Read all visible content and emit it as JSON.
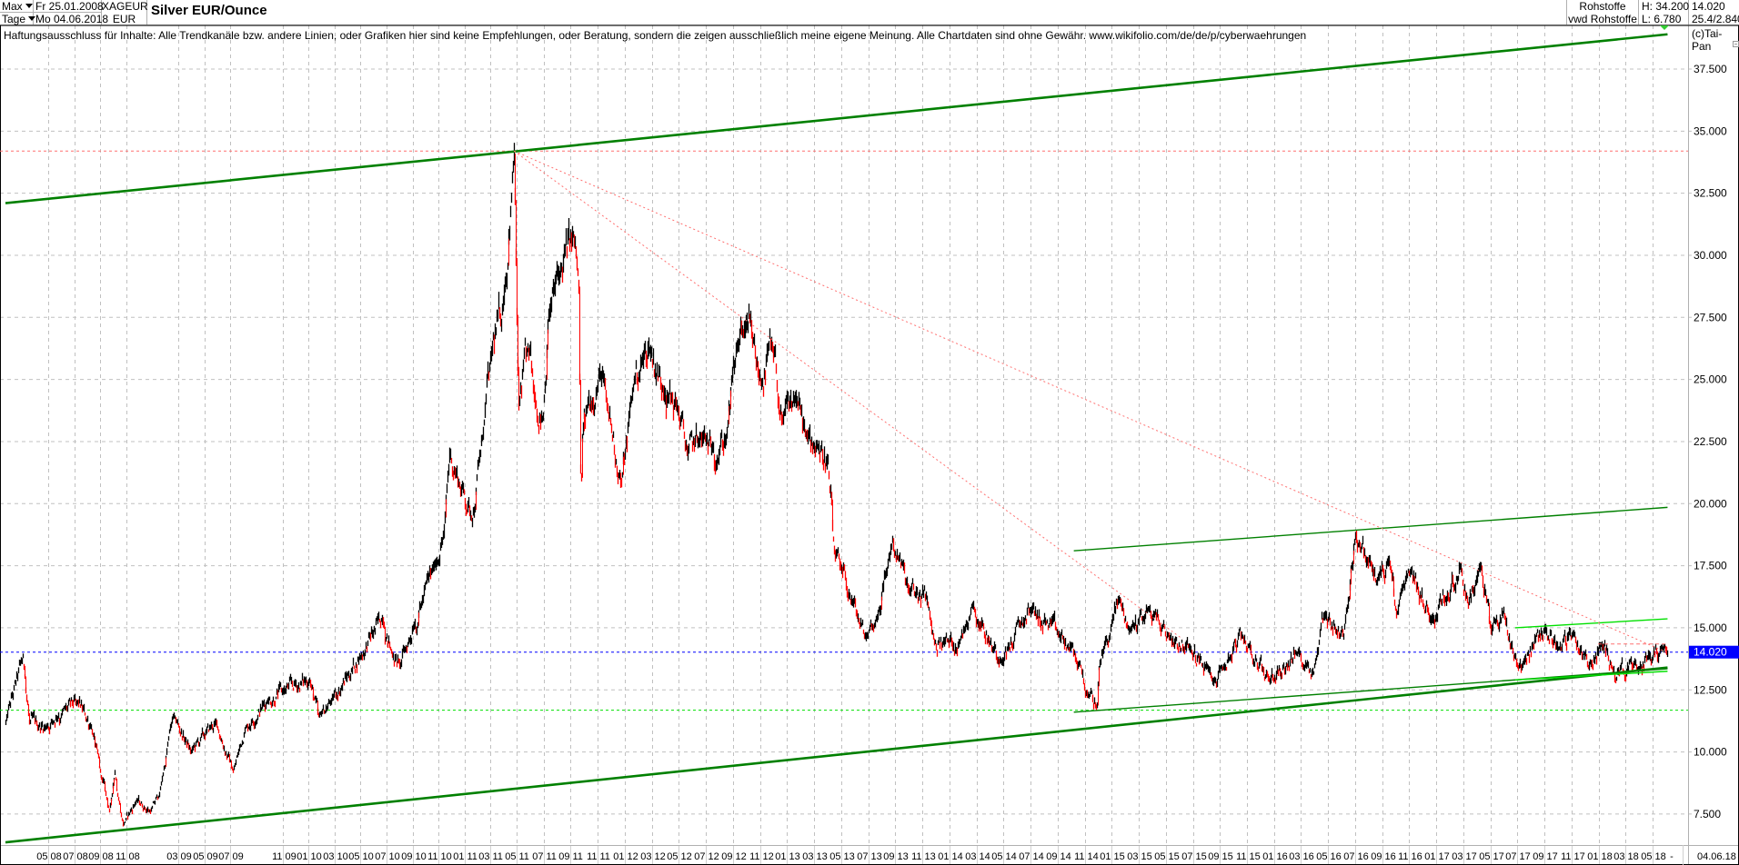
{
  "header": {
    "period_select": "Max",
    "interval_select": "Tage",
    "start_date": "Fr 25.01.2008",
    "end_date": "Mo 04.06.2018",
    "symbol": "XAGEUR",
    "currency": "EUR",
    "title": "Silver EUR/Ounce",
    "exchange": "Rohstoffe",
    "source": "vwd Rohstoffe",
    "high": "H: 34.200",
    "low": "L: 6.780",
    "last": "14.020",
    "info": "25.4/2.840"
  },
  "disclaimer": "Haftungsausschluss für Inhalte: Alle Trendkanäle bzw. andere Linien, oder Grafiken hier sind keine Empfehlungen, oder Beratung, sondern die zeigen ausschließlich meine eigene Meinung. Alle Chartdaten sind ohne Gewähr.  www.wikifolio.com/de/de/p/cyberwaehrungen",
  "copyright": "(c)Tai-Pan",
  "colors": {
    "bar_up": "#000000",
    "bar_down": "#ff0000",
    "trend_main": "#008000",
    "trend_light": "#00e000",
    "resistance_dotted": "#ff7070",
    "last_price": "#0000ff",
    "grid": "#c0c0c0"
  },
  "chart_data": {
    "type": "line",
    "style": "daily price bars",
    "xlim": [
      "2008-01-25",
      "2018-06-04"
    ],
    "ylim": [
      6.25,
      39.25
    ],
    "grid": true,
    "y_ticks": [
      "37.500",
      "35.000",
      "32.500",
      "30.000",
      "27.500",
      "25.000",
      "22.500",
      "20.000",
      "17.500",
      "15.000",
      "12.500",
      "10.000",
      "7.500"
    ],
    "y_tick_values": [
      37.5,
      35,
      32.5,
      30,
      27.5,
      25,
      22.5,
      20,
      17.5,
      15,
      12.5,
      10,
      7.5
    ],
    "x_ticks": [
      {
        "m": "05",
        "y": "08",
        "date": "2008-05-01"
      },
      {
        "m": "07",
        "y": "08",
        "date": "2008-07-01"
      },
      {
        "m": "09",
        "y": "08",
        "date": "2008-09-01"
      },
      {
        "m": "11",
        "y": "08",
        "date": "2008-11-01"
      },
      {
        "m": "03",
        "y": "09",
        "date": "2009-03-01"
      },
      {
        "m": "05",
        "y": "09",
        "date": "2009-05-01"
      },
      {
        "m": "07",
        "y": "09",
        "date": "2009-07-01"
      },
      {
        "m": "11",
        "y": "09",
        "date": "2009-11-01"
      },
      {
        "m": "01",
        "y": "10",
        "date": "2010-01-01"
      },
      {
        "m": "03",
        "y": "10",
        "date": "2010-03-01"
      },
      {
        "m": "05",
        "y": "10",
        "date": "2010-05-01"
      },
      {
        "m": "07",
        "y": "10",
        "date": "2010-07-01"
      },
      {
        "m": "09",
        "y": "10",
        "date": "2010-09-01"
      },
      {
        "m": "11",
        "y": "10",
        "date": "2010-11-01"
      },
      {
        "m": "01",
        "y": "11",
        "date": "2011-01-01"
      },
      {
        "m": "03",
        "y": "11",
        "date": "2011-03-01"
      },
      {
        "m": "05",
        "y": "11",
        "date": "2011-05-01"
      },
      {
        "m": "07",
        "y": "11",
        "date": "2011-07-01"
      },
      {
        "m": "09",
        "y": "11",
        "date": "2011-09-01"
      },
      {
        "m": "11",
        "y": "11",
        "date": "2011-11-01"
      },
      {
        "m": "01",
        "y": "12",
        "date": "2012-01-01"
      },
      {
        "m": "03",
        "y": "12",
        "date": "2012-03-01"
      },
      {
        "m": "05",
        "y": "12",
        "date": "2012-05-01"
      },
      {
        "m": "07",
        "y": "12",
        "date": "2012-07-01"
      },
      {
        "m": "09",
        "y": "12",
        "date": "2012-09-01"
      },
      {
        "m": "11",
        "y": "12",
        "date": "2012-11-01"
      },
      {
        "m": "01",
        "y": "13",
        "date": "2013-01-01"
      },
      {
        "m": "03",
        "y": "13",
        "date": "2013-03-01"
      },
      {
        "m": "05",
        "y": "13",
        "date": "2013-05-01"
      },
      {
        "m": "07",
        "y": "13",
        "date": "2013-07-01"
      },
      {
        "m": "09",
        "y": "13",
        "date": "2013-09-01"
      },
      {
        "m": "11",
        "y": "13",
        "date": "2013-11-01"
      },
      {
        "m": "01",
        "y": "14",
        "date": "2014-01-01"
      },
      {
        "m": "03",
        "y": "14",
        "date": "2014-03-01"
      },
      {
        "m": "05",
        "y": "14",
        "date": "2014-05-01"
      },
      {
        "m": "07",
        "y": "14",
        "date": "2014-07-01"
      },
      {
        "m": "09",
        "y": "14",
        "date": "2014-09-01"
      },
      {
        "m": "11",
        "y": "14",
        "date": "2014-11-01"
      },
      {
        "m": "01",
        "y": "15",
        "date": "2015-01-01"
      },
      {
        "m": "03",
        "y": "15",
        "date": "2015-03-01"
      },
      {
        "m": "05",
        "y": "15",
        "date": "2015-05-01"
      },
      {
        "m": "07",
        "y": "15",
        "date": "2015-07-01"
      },
      {
        "m": "09",
        "y": "15",
        "date": "2015-09-01"
      },
      {
        "m": "11",
        "y": "15",
        "date": "2015-11-01"
      },
      {
        "m": "01",
        "y": "16",
        "date": "2016-01-01"
      },
      {
        "m": "03",
        "y": "16",
        "date": "2016-03-01"
      },
      {
        "m": "05",
        "y": "16",
        "date": "2016-05-01"
      },
      {
        "m": "07",
        "y": "16",
        "date": "2016-07-01"
      },
      {
        "m": "09",
        "y": "16",
        "date": "2016-09-01"
      },
      {
        "m": "11",
        "y": "16",
        "date": "2016-11-01"
      },
      {
        "m": "01",
        "y": "17",
        "date": "2017-01-01"
      },
      {
        "m": "03",
        "y": "17",
        "date": "2017-03-01"
      },
      {
        "m": "05",
        "y": "17",
        "date": "2017-05-01"
      },
      {
        "m": "07",
        "y": "17",
        "date": "2017-07-01"
      },
      {
        "m": "09",
        "y": "17",
        "date": "2017-09-01"
      },
      {
        "m": "11",
        "y": "17",
        "date": "2017-11-01"
      },
      {
        "m": "01",
        "y": "18",
        "date": "2018-01-01"
      },
      {
        "m": "03",
        "y": "18",
        "date": "2018-03-01"
      },
      {
        "m": "05",
        "y": "18",
        "date": "2018-05-01"
      }
    ],
    "x_end_separator": "-",
    "x_end_label": "04.06.18",
    "last_price": 14.02,
    "last_price_label": "14.020",
    "series": [
      {
        "points": [
          [
            "2008-01-25",
            11.2
          ],
          [
            "2008-03-04",
            13.8
          ],
          [
            "2008-03-18",
            11.2
          ],
          [
            "2008-04-25",
            11.0
          ],
          [
            "2008-05-20",
            11.4
          ],
          [
            "2008-07-08",
            12.0
          ],
          [
            "2008-08-10",
            11.0
          ],
          [
            "2008-08-31",
            9.15
          ],
          [
            "2008-09-22",
            7.6
          ],
          [
            "2008-10-04",
            9.2
          ],
          [
            "2008-10-23",
            7.05
          ],
          [
            "2008-11-24",
            8.05
          ],
          [
            "2008-12-26",
            7.6
          ],
          [
            "2009-01-17",
            8.3
          ],
          [
            "2009-02-18",
            11.45
          ],
          [
            "2009-03-30",
            10.0
          ],
          [
            "2009-05-27",
            11.2
          ],
          [
            "2009-07-07",
            9.2
          ],
          [
            "2009-08-06",
            11.0
          ],
          [
            "2009-09-28",
            12.1
          ],
          [
            "2009-10-30",
            12.45
          ],
          [
            "2010-01-03",
            12.9
          ],
          [
            "2010-01-24",
            11.4
          ],
          [
            "2010-02-25",
            12.1
          ],
          [
            "2010-04-28",
            13.8
          ],
          [
            "2010-06-21",
            15.4
          ],
          [
            "2010-07-12",
            14.0
          ],
          [
            "2010-08-02",
            13.5
          ],
          [
            "2010-09-04",
            15.1
          ],
          [
            "2010-10-16",
            17.3
          ],
          [
            "2010-11-13",
            18.8
          ],
          [
            "2010-11-26",
            22.0
          ],
          [
            "2011-01-18",
            19.4
          ],
          [
            "2011-02-11",
            22.6
          ],
          [
            "2011-03-02",
            26.0
          ],
          [
            "2011-03-30",
            28.1
          ],
          [
            "2011-04-16",
            31.6
          ],
          [
            "2011-04-25",
            34.2
          ],
          [
            "2011-05-02",
            26.3
          ],
          [
            "2011-05-05",
            23.8
          ],
          [
            "2011-05-25",
            26.3
          ],
          [
            "2011-06-11",
            24.2
          ],
          [
            "2011-06-29",
            23.4
          ],
          [
            "2011-07-11",
            27.5
          ],
          [
            "2011-08-06",
            29.3
          ],
          [
            "2011-09-06",
            30.8
          ],
          [
            "2011-09-18",
            29.0
          ],
          [
            "2011-09-23",
            19.8
          ],
          [
            "2011-09-26",
            22.6
          ],
          [
            "2011-10-06",
            23.8
          ],
          [
            "2011-11-06",
            25.3
          ],
          [
            "2011-11-22",
            23.8
          ],
          [
            "2011-12-23",
            20.8
          ],
          [
            "2012-01-21",
            25.0
          ],
          [
            "2012-02-25",
            26.3
          ],
          [
            "2012-03-26",
            24.6
          ],
          [
            "2012-04-28",
            23.8
          ],
          [
            "2012-05-20",
            22.0
          ],
          [
            "2012-06-14",
            22.6
          ],
          [
            "2012-07-14",
            22.2
          ],
          [
            "2012-08-15",
            22.6
          ],
          [
            "2012-09-09",
            26.3
          ],
          [
            "2012-10-01",
            27.2
          ],
          [
            "2012-11-03",
            24.8
          ],
          [
            "2012-11-26",
            26.4
          ],
          [
            "2012-12-20",
            23.2
          ],
          [
            "2013-01-20",
            24.3
          ],
          [
            "2013-02-14",
            22.6
          ],
          [
            "2013-03-07",
            22.4
          ],
          [
            "2013-04-01",
            21.6
          ],
          [
            "2013-04-15",
            18.0
          ],
          [
            "2013-04-30",
            17.3
          ],
          [
            "2013-06-23",
            14.6
          ],
          [
            "2013-07-21",
            15.5
          ],
          [
            "2013-08-24",
            18.5
          ],
          [
            "2013-10-02",
            16.4
          ],
          [
            "2013-11-10",
            16.2
          ],
          [
            "2013-11-27",
            14.4
          ],
          [
            "2014-01-23",
            14.4
          ],
          [
            "2014-02-21",
            16.0
          ],
          [
            "2014-03-30",
            14.4
          ],
          [
            "2014-04-26",
            13.7
          ],
          [
            "2014-06-29",
            15.75
          ],
          [
            "2014-09-05",
            14.65
          ],
          [
            "2014-10-20",
            13.55
          ],
          [
            "2014-11-06",
            12.3
          ],
          [
            "2014-11-28",
            11.8
          ],
          [
            "2014-12-02",
            13.4
          ],
          [
            "2015-01-17",
            16.2
          ],
          [
            "2015-02-09",
            14.9
          ],
          [
            "2015-03-23",
            15.75
          ],
          [
            "2015-05-08",
            14.65
          ],
          [
            "2015-06-22",
            14.2
          ],
          [
            "2015-08-18",
            12.8
          ],
          [
            "2015-10-19",
            14.65
          ],
          [
            "2015-12-20",
            12.9
          ],
          [
            "2016-02-26",
            14.0
          ],
          [
            "2016-03-28",
            13.2
          ],
          [
            "2016-04-21",
            15.6
          ],
          [
            "2016-06-05",
            14.65
          ],
          [
            "2016-07-01",
            18.8
          ],
          [
            "2016-08-18",
            16.85
          ],
          [
            "2016-09-16",
            17.7
          ],
          [
            "2016-10-02",
            15.5
          ],
          [
            "2016-11-04",
            17.3
          ],
          [
            "2016-12-18",
            15.3
          ],
          [
            "2017-02-25",
            17.5
          ],
          [
            "2017-03-11",
            16.0
          ],
          [
            "2017-04-09",
            17.5
          ],
          [
            "2017-05-01",
            14.9
          ],
          [
            "2017-05-30",
            15.6
          ],
          [
            "2017-07-02",
            13.4
          ],
          [
            "2017-09-02",
            15.0
          ],
          [
            "2017-10-01",
            14.2
          ],
          [
            "2017-11-05",
            14.75
          ],
          [
            "2017-12-08",
            13.4
          ],
          [
            "2018-01-06",
            14.3
          ],
          [
            "2018-02-02",
            13.4
          ],
          [
            "2018-03-29",
            13.3
          ],
          [
            "2018-04-21",
            13.9
          ],
          [
            "2018-05-23",
            14.2
          ],
          [
            "2018-06-04",
            14.02
          ]
        ]
      }
    ],
    "trendlines": [
      {
        "id": "upper-main-trend",
        "style": "thick",
        "color": "trend_main",
        "from": [
          "2008-01-25",
          32.1
        ],
        "to": [
          "2018-06-04",
          38.9
        ]
      },
      {
        "id": "lower-main-trend",
        "style": "thick",
        "color": "trend_main",
        "from": [
          "2008-01-25",
          6.36
        ],
        "to": [
          "2018-06-04",
          13.4
        ]
      },
      {
        "id": "channel-upper",
        "style": "thin",
        "color": "trend_main",
        "from": [
          "2014-10-07",
          18.1
        ],
        "to": [
          "2018-06-04",
          19.85
        ]
      },
      {
        "id": "channel-lower",
        "style": "thin",
        "color": "trend_main",
        "from": [
          "2014-10-07",
          11.6
        ],
        "to": [
          "2018-06-04",
          13.35
        ]
      },
      {
        "id": "short-channel-upper",
        "style": "thin",
        "color": "trend_light",
        "from": [
          "2017-06-26",
          15.0
        ],
        "to": [
          "2018-06-04",
          15.36
        ]
      },
      {
        "id": "short-channel-lower",
        "style": "thin",
        "color": "trend_light",
        "from": [
          "2017-06-26",
          12.9
        ],
        "to": [
          "2018-06-04",
          13.25
        ]
      },
      {
        "id": "resistance-steep",
        "style": "dotted",
        "color": "resistance_dotted",
        "from": [
          "2011-04-25",
          34.2
        ],
        "to": [
          "2015-06-08",
          14.55
        ]
      },
      {
        "id": "resistance-flat",
        "style": "dotted",
        "color": "resistance_dotted",
        "from": [
          "2011-04-25",
          34.2
        ],
        "to": [
          "2018-06-04",
          14.0
        ]
      },
      {
        "id": "resistance-short-horizontal",
        "style": "dashed",
        "color": "resistance_dotted",
        "from": [
          "2017-12-30",
          14.35
        ],
        "to": [
          "2018-06-04",
          14.35
        ]
      }
    ],
    "hlines": [
      {
        "id": "high-line",
        "value": 34.2,
        "color": "resistance_dotted"
      },
      {
        "id": "support-line",
        "value": 11.68,
        "color": "trend_light"
      },
      {
        "id": "last-price-line",
        "value": 14.02,
        "color": "last_price"
      }
    ]
  }
}
